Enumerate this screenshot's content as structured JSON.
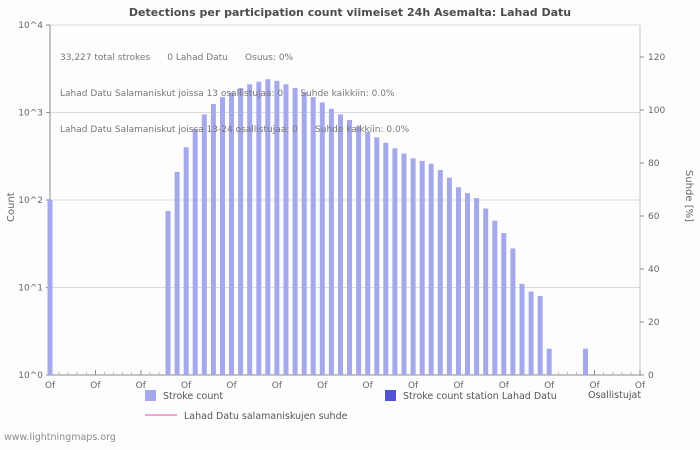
{
  "chart_data": {
    "type": "bar",
    "title": "Detections per participation count viimeiset 24h Asemalta: Lahad Datu",
    "xlabel": "Osallistujat",
    "ylabel_left": "Count",
    "ylabel_right": "Suhde [%]",
    "y_scale_left": "log10",
    "y_left_exponents": [
      0,
      4
    ],
    "y_left_tick_labels": [
      "10^0",
      "10^1",
      "10^2",
      "10^3",
      "10^4"
    ],
    "ylim_right": [
      0,
      132
    ],
    "y_right_ticks": [
      0,
      20,
      40,
      60,
      80,
      100,
      120
    ],
    "xlim": [
      0,
      65
    ],
    "x_major_ticks": [
      0,
      5,
      10,
      15,
      20,
      25,
      30,
      35,
      40,
      45,
      50,
      55,
      60,
      65
    ],
    "x_tick_label_text": "Of",
    "grid": "horizontal-decade-lines",
    "legend_position": "bottom",
    "annotations": [
      "33,227 total strokes      0 Lahad Datu      Osuus: 0%",
      "Lahad Datu Salamaniskut joissa 13 osallistujaa: 0      Suhde kaikkiin: 0.0%",
      "Lahad Datu Salamaniskut joissa 13-24 osallistujaa: 0      Suhde kaikkiin: 0.0%"
    ],
    "series": [
      {
        "name": "Stroke count",
        "type": "bar",
        "axis": "left",
        "color": "#a6a8ec",
        "points": [
          [
            0,
            100
          ],
          [
            13,
            75
          ],
          [
            14,
            210
          ],
          [
            15,
            400
          ],
          [
            16,
            650
          ],
          [
            17,
            950
          ],
          [
            18,
            1250
          ],
          [
            19,
            1500
          ],
          [
            20,
            1700
          ],
          [
            21,
            1900
          ],
          [
            22,
            2100
          ],
          [
            23,
            2250
          ],
          [
            24,
            2400
          ],
          [
            25,
            2300
          ],
          [
            26,
            2100
          ],
          [
            27,
            1900
          ],
          [
            28,
            1700
          ],
          [
            29,
            1500
          ],
          [
            30,
            1300
          ],
          [
            31,
            1100
          ],
          [
            32,
            950
          ],
          [
            33,
            820
          ],
          [
            34,
            700
          ],
          [
            35,
            600
          ],
          [
            36,
            520
          ],
          [
            37,
            450
          ],
          [
            38,
            390
          ],
          [
            39,
            340
          ],
          [
            40,
            300
          ],
          [
            41,
            280
          ],
          [
            42,
            260
          ],
          [
            43,
            220
          ],
          [
            44,
            180
          ],
          [
            45,
            140
          ],
          [
            46,
            120
          ],
          [
            47,
            105
          ],
          [
            48,
            80
          ],
          [
            49,
            58
          ],
          [
            50,
            42
          ],
          [
            51,
            28
          ],
          [
            52,
            11
          ],
          [
            53,
            9
          ],
          [
            54,
            8
          ],
          [
            55,
            2
          ],
          [
            59,
            2
          ]
        ]
      },
      {
        "name": "Stroke count station Lahad Datu",
        "type": "bar",
        "axis": "left",
        "color": "#5254ce",
        "points": []
      },
      {
        "name": "Lahad Datu salamaniskujen suhde",
        "type": "line",
        "axis": "right",
        "color": "#f0a4d2",
        "points": []
      }
    ]
  },
  "footer": {
    "watermark": "www.lightningmaps.org"
  }
}
